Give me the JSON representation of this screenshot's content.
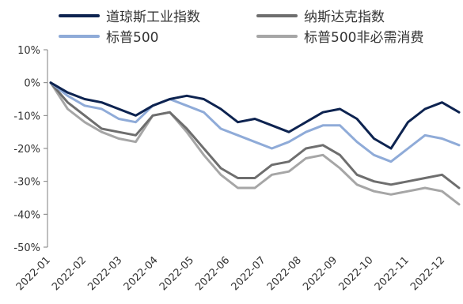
{
  "chart_data": {
    "type": "line",
    "title": "",
    "xlabel": "",
    "ylabel": "",
    "ylim": [
      -50,
      10
    ],
    "yticks": [
      10,
      0,
      -10,
      -20,
      -30,
      -40,
      -50
    ],
    "ytick_labels": [
      "10%",
      "0%",
      "-10%",
      "-20%",
      "-30%",
      "-40%",
      "-50%"
    ],
    "xtick_labels": [
      "2022-01",
      "2022-02",
      "2022-03",
      "2022-04",
      "2022-05",
      "2022-06",
      "2022-07",
      "2022-08",
      "2022-09",
      "2022-10",
      "2022-11",
      "2022-12"
    ],
    "grid": false,
    "legend_position": "top",
    "x": [
      0,
      0.5,
      1,
      1.5,
      2,
      2.5,
      3,
      3.5,
      4,
      4.5,
      5,
      5.5,
      6,
      6.5,
      7,
      7.5,
      8,
      8.5,
      9,
      9.5,
      10,
      10.5,
      11,
      11.5,
      12
    ],
    "series": [
      {
        "name": "道琼斯工业指数",
        "color": "#0d2350",
        "values": [
          0,
          -3,
          -5,
          -6,
          -8,
          -10,
          -7,
          -5,
          -4,
          -5,
          -8,
          -12,
          -11,
          -13,
          -15,
          -12,
          -9,
          -8,
          -11,
          -17,
          -20,
          -12,
          -8,
          -6,
          -9
        ]
      },
      {
        "name": "标普500",
        "color": "#8fabd8",
        "values": [
          0,
          -4,
          -7,
          -8,
          -11,
          -12,
          -7,
          -5,
          -7,
          -9,
          -14,
          -16,
          -18,
          -20,
          -18,
          -15,
          -13,
          -13,
          -18,
          -22,
          -24,
          -20,
          -16,
          -17,
          -19
        ]
      },
      {
        "name": "纳斯达克指数",
        "color": "#6e6e6e",
        "values": [
          0,
          -6,
          -10,
          -14,
          -15,
          -16,
          -10,
          -9,
          -14,
          -20,
          -26,
          -29,
          -29,
          -25,
          -24,
          -20,
          -19,
          -22,
          -28,
          -30,
          -31,
          -30,
          -29,
          -28,
          -32
        ]
      },
      {
        "name": "标普500非必需消费",
        "color": "#a6a6a6",
        "values": [
          0,
          -8,
          -12,
          -15,
          -17,
          -18,
          -10,
          -9,
          -15,
          -22,
          -28,
          -32,
          -32,
          -28,
          -27,
          -23,
          -22,
          -26,
          -31,
          -33,
          -34,
          -33,
          -32,
          -33,
          -37
        ]
      }
    ]
  }
}
